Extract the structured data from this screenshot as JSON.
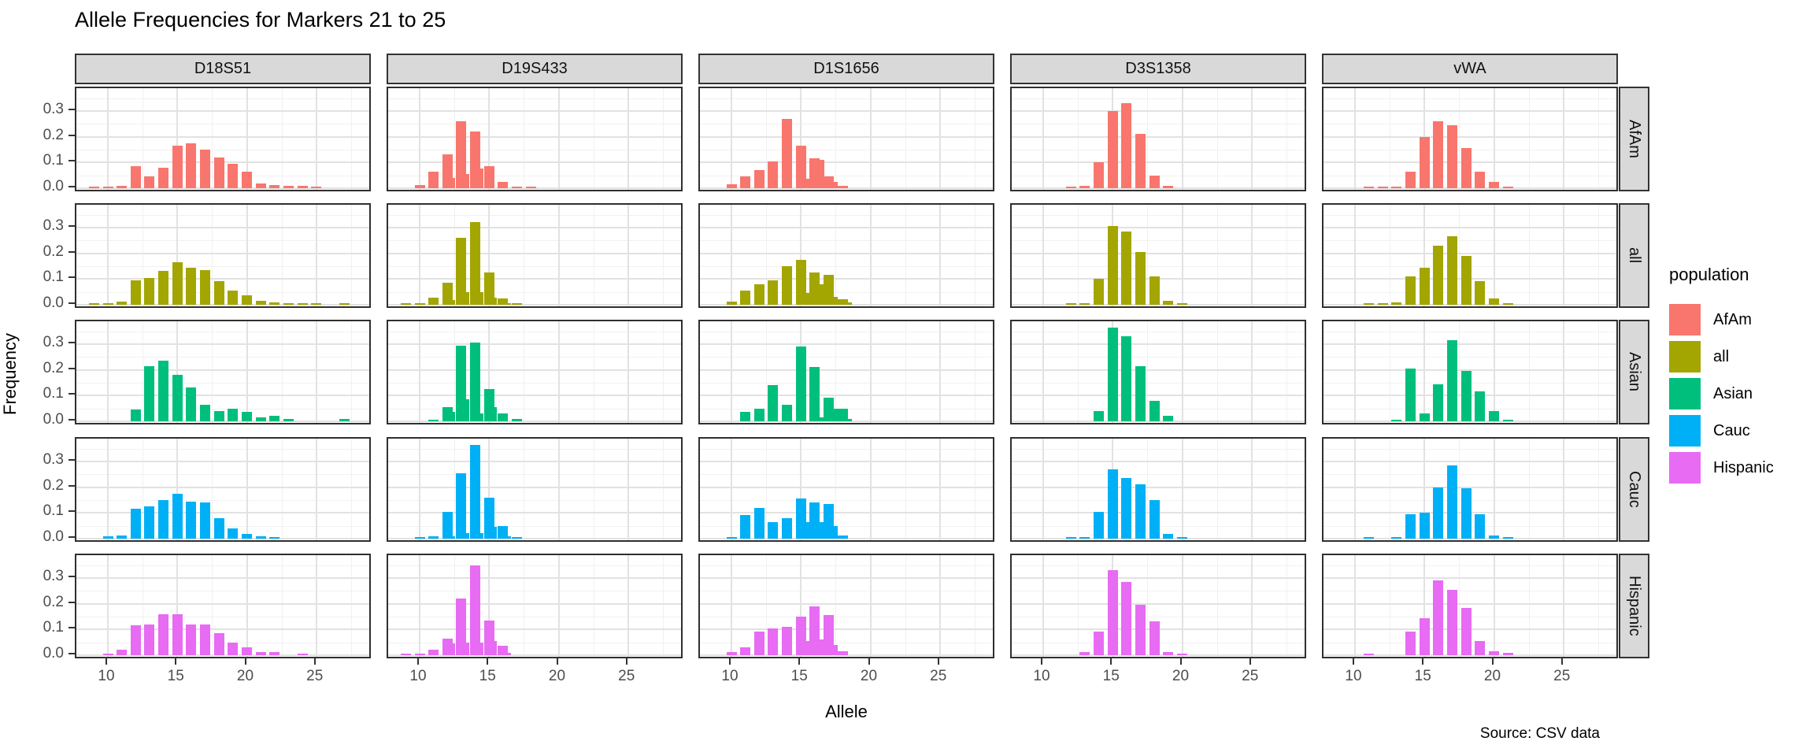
{
  "chart_data": {
    "type": "bar",
    "title": "Allele Frequencies for Markers 21 to 25",
    "xlabel": "Allele",
    "ylabel": "Frequency",
    "caption": "Source: CSV data",
    "legend_title": "population",
    "legend_position": "right",
    "grid": true,
    "col_facets": [
      "D18S51",
      "D19S433",
      "D1S1656",
      "D3S1358",
      "vWA"
    ],
    "row_facets": [
      "AfAm",
      "all",
      "Asian",
      "Cauc",
      "Hispanic"
    ],
    "legend": [
      {
        "label": "AfAm",
        "color": "#F8766D"
      },
      {
        "label": "all",
        "color": "#A3A500"
      },
      {
        "label": "Asian",
        "color": "#00BF7D"
      },
      {
        "label": "Cauc",
        "color": "#00B0F6"
      },
      {
        "label": "Hispanic",
        "color": "#E76BF3"
      }
    ],
    "x_ticks": [
      10,
      15,
      20,
      25
    ],
    "y_ticks": [
      0.0,
      0.1,
      0.2,
      0.3
    ],
    "x_minor_ticks": [
      12.5,
      17.5,
      22.5,
      27.5
    ],
    "y_minor_ticks": [
      0.05,
      0.15,
      0.25,
      0.35
    ],
    "xlim": [
      7.7,
      29.0
    ],
    "ylim": [
      -0.019,
      0.389
    ],
    "series_format": "each panel: [allele, frequency] pairs",
    "panels": {
      "D18S51": {
        "AfAm": [
          [
            9,
            0.004
          ],
          [
            10,
            0.006
          ],
          [
            11,
            0.01
          ],
          [
            12,
            0.085
          ],
          [
            13,
            0.045
          ],
          [
            14,
            0.08
          ],
          [
            15,
            0.165
          ],
          [
            16,
            0.175
          ],
          [
            17,
            0.15
          ],
          [
            18,
            0.12
          ],
          [
            19,
            0.095
          ],
          [
            20,
            0.065
          ],
          [
            21,
            0.018
          ],
          [
            22,
            0.012
          ],
          [
            23,
            0.01
          ],
          [
            24,
            0.008
          ],
          [
            25,
            0.005
          ]
        ],
        "all": [
          [
            9,
            0.004
          ],
          [
            10,
            0.007
          ],
          [
            11,
            0.012
          ],
          [
            12,
            0.095
          ],
          [
            13,
            0.105
          ],
          [
            14,
            0.13
          ],
          [
            15,
            0.165
          ],
          [
            16,
            0.145
          ],
          [
            17,
            0.135
          ],
          [
            18,
            0.09
          ],
          [
            19,
            0.055
          ],
          [
            20,
            0.035
          ],
          [
            21,
            0.015
          ],
          [
            22,
            0.01
          ],
          [
            23,
            0.005
          ],
          [
            24,
            0.004
          ],
          [
            25,
            0.002
          ],
          [
            27,
            0.001
          ]
        ],
        "Asian": [
          [
            12,
            0.045
          ],
          [
            13,
            0.215
          ],
          [
            14,
            0.235
          ],
          [
            15,
            0.18
          ],
          [
            16,
            0.13
          ],
          [
            17,
            0.065
          ],
          [
            18,
            0.04
          ],
          [
            19,
            0.05
          ],
          [
            20,
            0.035
          ],
          [
            21,
            0.015
          ],
          [
            22,
            0.02
          ],
          [
            23,
            0.008
          ],
          [
            27,
            0.008
          ]
        ],
        "Cauc": [
          [
            10,
            0.01
          ],
          [
            11,
            0.012
          ],
          [
            12,
            0.115
          ],
          [
            13,
            0.125
          ],
          [
            14,
            0.15
          ],
          [
            15,
            0.175
          ],
          [
            16,
            0.145
          ],
          [
            17,
            0.14
          ],
          [
            18,
            0.08
          ],
          [
            19,
            0.04
          ],
          [
            20,
            0.017
          ],
          [
            21,
            0.01
          ],
          [
            22,
            0.005
          ]
        ],
        "Hispanic": [
          [
            10,
            0.005
          ],
          [
            11,
            0.02
          ],
          [
            12,
            0.115
          ],
          [
            13,
            0.12
          ],
          [
            14,
            0.16
          ],
          [
            15,
            0.16
          ],
          [
            16,
            0.12
          ],
          [
            17,
            0.12
          ],
          [
            18,
            0.085
          ],
          [
            19,
            0.05
          ],
          [
            20,
            0.03
          ],
          [
            21,
            0.012
          ],
          [
            22,
            0.012
          ],
          [
            24,
            0.004
          ]
        ]
      },
      "D19S433": {
        "AfAm": [
          [
            10,
            0.013
          ],
          [
            11,
            0.065
          ],
          [
            12,
            0.13
          ],
          [
            12.2,
            0.04
          ],
          [
            13,
            0.26
          ],
          [
            13.2,
            0.055
          ],
          [
            14,
            0.22
          ],
          [
            14.2,
            0.075
          ],
          [
            15,
            0.085
          ],
          [
            16,
            0.023
          ],
          [
            17,
            0.007
          ],
          [
            18,
            0.003
          ]
        ],
        "all": [
          [
            9,
            0.003
          ],
          [
            10,
            0.006
          ],
          [
            11,
            0.027
          ],
          [
            12,
            0.085
          ],
          [
            12.2,
            0.017
          ],
          [
            13,
            0.26
          ],
          [
            13.2,
            0.048
          ],
          [
            14,
            0.32
          ],
          [
            14.2,
            0.05
          ],
          [
            15,
            0.125
          ],
          [
            15.2,
            0.027
          ],
          [
            16,
            0.024
          ],
          [
            16.2,
            0.004
          ],
          [
            17,
            0.003
          ]
        ],
        "Asian": [
          [
            11,
            0.004
          ],
          [
            12,
            0.055
          ],
          [
            12.2,
            0.035
          ],
          [
            13,
            0.295
          ],
          [
            13.2,
            0.085
          ],
          [
            14,
            0.305
          ],
          [
            14.2,
            0.03
          ],
          [
            15,
            0.125
          ],
          [
            15.2,
            0.055
          ],
          [
            16,
            0.03
          ],
          [
            17,
            0.008
          ]
        ],
        "Cauc": [
          [
            10,
            0.004
          ],
          [
            11,
            0.01
          ],
          [
            12,
            0.105
          ],
          [
            12.2,
            0.01
          ],
          [
            13,
            0.255
          ],
          [
            13.2,
            0.02
          ],
          [
            14,
            0.365
          ],
          [
            14.2,
            0.02
          ],
          [
            15,
            0.16
          ],
          [
            15.2,
            0.045
          ],
          [
            16,
            0.05
          ],
          [
            16.2,
            0.01
          ],
          [
            17,
            0.004
          ]
        ],
        "Hispanic": [
          [
            9,
            0.003
          ],
          [
            10,
            0.004
          ],
          [
            11,
            0.02
          ],
          [
            12,
            0.065
          ],
          [
            12.2,
            0.045
          ],
          [
            13,
            0.22
          ],
          [
            13.2,
            0.05
          ],
          [
            14,
            0.35
          ],
          [
            14.2,
            0.05
          ],
          [
            15,
            0.135
          ],
          [
            15.2,
            0.055
          ],
          [
            16,
            0.035
          ],
          [
            16.2,
            0.01
          ]
        ]
      },
      "D1S1656": {
        "AfAm": [
          [
            10,
            0.015
          ],
          [
            11,
            0.045
          ],
          [
            12,
            0.07
          ],
          [
            13,
            0.105
          ],
          [
            14,
            0.27
          ],
          [
            15,
            0.165
          ],
          [
            15.3,
            0.035
          ],
          [
            16,
            0.115
          ],
          [
            16.3,
            0.11
          ],
          [
            17,
            0.045
          ],
          [
            17.3,
            0.025
          ],
          [
            18,
            0.008
          ]
        ],
        "all": [
          [
            10,
            0.012
          ],
          [
            11,
            0.055
          ],
          [
            12,
            0.08
          ],
          [
            13,
            0.095
          ],
          [
            14,
            0.15
          ],
          [
            15,
            0.175
          ],
          [
            15.3,
            0.045
          ],
          [
            16,
            0.125
          ],
          [
            16.3,
            0.08
          ],
          [
            17,
            0.115
          ],
          [
            17.3,
            0.03
          ],
          [
            18,
            0.02
          ],
          [
            18.3,
            0.008
          ]
        ],
        "Asian": [
          [
            11,
            0.035
          ],
          [
            12,
            0.05
          ],
          [
            13,
            0.14
          ],
          [
            14,
            0.065
          ],
          [
            15,
            0.29
          ],
          [
            16,
            0.21
          ],
          [
            16.3,
            0.015
          ],
          [
            17,
            0.09
          ],
          [
            17.3,
            0.05
          ],
          [
            18,
            0.05
          ],
          [
            18.3,
            0.01
          ]
        ],
        "Cauc": [
          [
            10,
            0.004
          ],
          [
            11,
            0.09
          ],
          [
            12,
            0.12
          ],
          [
            13,
            0.065
          ],
          [
            14,
            0.08
          ],
          [
            15,
            0.155
          ],
          [
            15.3,
            0.065
          ],
          [
            16,
            0.14
          ],
          [
            16.3,
            0.065
          ],
          [
            17,
            0.135
          ],
          [
            17.3,
            0.05
          ],
          [
            18,
            0.013
          ]
        ],
        "Hispanic": [
          [
            10,
            0.012
          ],
          [
            11,
            0.03
          ],
          [
            12,
            0.09
          ],
          [
            13,
            0.105
          ],
          [
            14,
            0.11
          ],
          [
            15,
            0.15
          ],
          [
            15.3,
            0.055
          ],
          [
            16,
            0.19
          ],
          [
            16.3,
            0.06
          ],
          [
            17,
            0.155
          ],
          [
            17.3,
            0.04
          ],
          [
            18,
            0.015
          ]
        ]
      },
      "D3S1358": {
        "AfAm": [
          [
            12,
            0.004
          ],
          [
            13,
            0.01
          ],
          [
            14,
            0.1
          ],
          [
            15,
            0.3
          ],
          [
            16,
            0.33
          ],
          [
            17,
            0.21
          ],
          [
            18,
            0.05
          ],
          [
            19,
            0.008
          ]
        ],
        "all": [
          [
            12,
            0.002
          ],
          [
            13,
            0.005
          ],
          [
            14,
            0.1
          ],
          [
            15,
            0.305
          ],
          [
            16,
            0.285
          ],
          [
            17,
            0.205
          ],
          [
            18,
            0.11
          ],
          [
            19,
            0.015
          ],
          [
            20,
            0.002
          ]
        ],
        "Asian": [
          [
            14,
            0.04
          ],
          [
            15,
            0.365
          ],
          [
            16,
            0.33
          ],
          [
            17,
            0.215
          ],
          [
            18,
            0.08
          ],
          [
            19,
            0.02
          ]
        ],
        "Cauc": [
          [
            12,
            0.003
          ],
          [
            13,
            0.004
          ],
          [
            14,
            0.105
          ],
          [
            15,
            0.27
          ],
          [
            16,
            0.235
          ],
          [
            17,
            0.21
          ],
          [
            18,
            0.15
          ],
          [
            19,
            0.018
          ],
          [
            20,
            0.003
          ]
        ],
        "Hispanic": [
          [
            13,
            0.012
          ],
          [
            14,
            0.09
          ],
          [
            15,
            0.33
          ],
          [
            16,
            0.285
          ],
          [
            17,
            0.195
          ],
          [
            18,
            0.13
          ],
          [
            19,
            0.012
          ],
          [
            20,
            0.005
          ]
        ]
      },
      "vWA": {
        "AfAm": [
          [
            11,
            0.004
          ],
          [
            12,
            0.004
          ],
          [
            13,
            0.007
          ],
          [
            14,
            0.065
          ],
          [
            15,
            0.2
          ],
          [
            16,
            0.26
          ],
          [
            17,
            0.245
          ],
          [
            18,
            0.155
          ],
          [
            19,
            0.065
          ],
          [
            20,
            0.025
          ],
          [
            21,
            0.005
          ]
        ],
        "all": [
          [
            11,
            0.003
          ],
          [
            12,
            0.002
          ],
          [
            13,
            0.008
          ],
          [
            14,
            0.11
          ],
          [
            15,
            0.145
          ],
          [
            16,
            0.23
          ],
          [
            17,
            0.265
          ],
          [
            18,
            0.19
          ],
          [
            19,
            0.09
          ],
          [
            20,
            0.025
          ],
          [
            21,
            0.005
          ]
        ],
        "Asian": [
          [
            13,
            0.005
          ],
          [
            14,
            0.205
          ],
          [
            15,
            0.03
          ],
          [
            16,
            0.145
          ],
          [
            17,
            0.315
          ],
          [
            18,
            0.195
          ],
          [
            19,
            0.115
          ],
          [
            20,
            0.04
          ],
          [
            21,
            0.005
          ]
        ],
        "Cauc": [
          [
            11,
            0.003
          ],
          [
            13,
            0.004
          ],
          [
            14,
            0.095
          ],
          [
            15,
            0.1
          ],
          [
            16,
            0.2
          ],
          [
            17,
            0.285
          ],
          [
            18,
            0.195
          ],
          [
            19,
            0.095
          ],
          [
            20,
            0.012
          ],
          [
            21,
            0.004
          ]
        ],
        "Hispanic": [
          [
            11,
            0.004
          ],
          [
            14,
            0.09
          ],
          [
            15,
            0.145
          ],
          [
            16,
            0.29
          ],
          [
            17,
            0.255
          ],
          [
            18,
            0.185
          ],
          [
            19,
            0.055
          ],
          [
            20,
            0.015
          ],
          [
            21,
            0.008
          ]
        ]
      }
    }
  }
}
